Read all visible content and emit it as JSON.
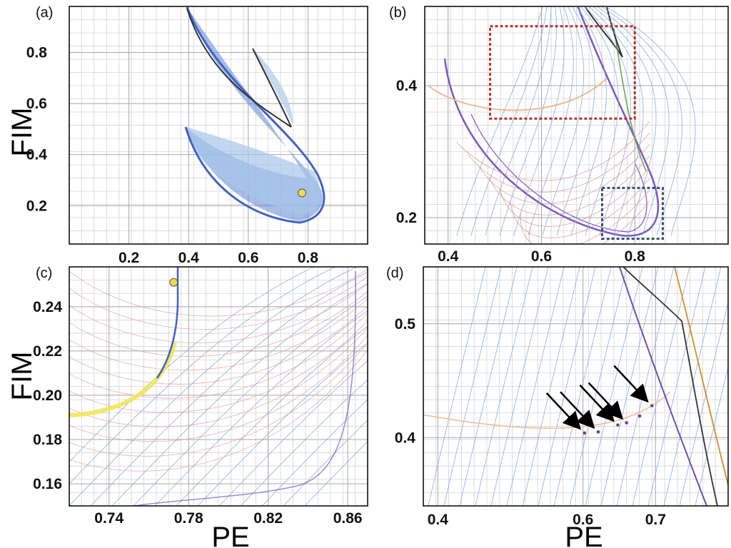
{
  "figure": {
    "ylabel_top": "FIM",
    "ylabel_bottom": "FIM",
    "xlabel_c": "PE",
    "xlabel_d": "PE"
  },
  "chart_data": [
    {
      "type": "line",
      "panel": "(a)",
      "xlabel": "",
      "ylabel": "FIM",
      "xlim": [
        0.0,
        1.0
      ],
      "ylim": [
        0.05,
        0.98
      ],
      "xticks": [
        0.2,
        0.4,
        0.6,
        0.8
      ],
      "xtick_labels": [
        "0.2",
        "0.4",
        "0.6",
        "0.8"
      ],
      "yticks": [
        0.2,
        0.4,
        0.6,
        0.8
      ],
      "ytick_labels": [
        "0.2",
        "0.4",
        "0.6",
        "0.8"
      ],
      "grid": true,
      "marker_point": {
        "x": 0.78,
        "y": 0.25,
        "color": "#f2d64b"
      },
      "colors": {
        "blue": "#3f63c6",
        "dark": "#222222",
        "light": "#9ec2ea"
      }
    },
    {
      "type": "line",
      "panel": "(b)",
      "xlabel": "",
      "ylabel": "",
      "xlim": [
        0.35,
        1.0
      ],
      "ylim": [
        0.16,
        0.52
      ],
      "xticks": [
        0.4,
        0.6,
        0.8
      ],
      "xtick_labels": [
        "0.4",
        "0.6",
        "0.8"
      ],
      "yticks": [
        0.2,
        0.4
      ],
      "ytick_labels": [
        "0.2",
        "0.4"
      ],
      "grid": true,
      "highlight_boxes": [
        {
          "x": [
            0.49,
            0.8
          ],
          "y": [
            0.35,
            0.49
          ],
          "color": "#b83026"
        },
        {
          "x": [
            0.73,
            0.86
          ],
          "y": [
            0.168,
            0.245
          ],
          "color": "#2e4f73"
        }
      ]
    },
    {
      "type": "line",
      "panel": "(c)",
      "xlabel": "PE",
      "ylabel": "FIM",
      "xlim": [
        0.72,
        0.87
      ],
      "ylim": [
        0.15,
        0.258
      ],
      "xticks": [
        0.74,
        0.78,
        0.82,
        0.86
      ],
      "xtick_labels": [
        "0.74",
        "0.78",
        "0.82",
        "0.86"
      ],
      "yticks": [
        0.16,
        0.18,
        0.2,
        0.22,
        0.24
      ],
      "ytick_labels": [
        "0.16",
        "0.18",
        "0.20",
        "0.22",
        "0.24"
      ],
      "grid": true,
      "marker_point": {
        "x": 0.7725,
        "y": 0.251,
        "color": "#f2d64b"
      }
    },
    {
      "type": "line",
      "panel": "(d)",
      "xlabel": "PE",
      "ylabel": "",
      "xlim": [
        0.38,
        0.8
      ],
      "ylim": [
        0.34,
        0.55
      ],
      "xticks": [
        0.4,
        0.6,
        0.7
      ],
      "xtick_labels": [
        "0.4",
        "0.6",
        "0.7"
      ],
      "yticks": [
        0.4,
        0.5
      ],
      "ytick_labels": [
        "0.4",
        "0.5"
      ],
      "grid": true,
      "points": [
        {
          "x": 0.602,
          "y": 0.404
        },
        {
          "x": 0.621,
          "y": 0.405
        },
        {
          "x": 0.648,
          "y": 0.411
        },
        {
          "x": 0.66,
          "y": 0.413
        },
        {
          "x": 0.678,
          "y": 0.419
        },
        {
          "x": 0.695,
          "y": 0.428
        }
      ],
      "arrows_pointing_to_points": 5
    }
  ]
}
